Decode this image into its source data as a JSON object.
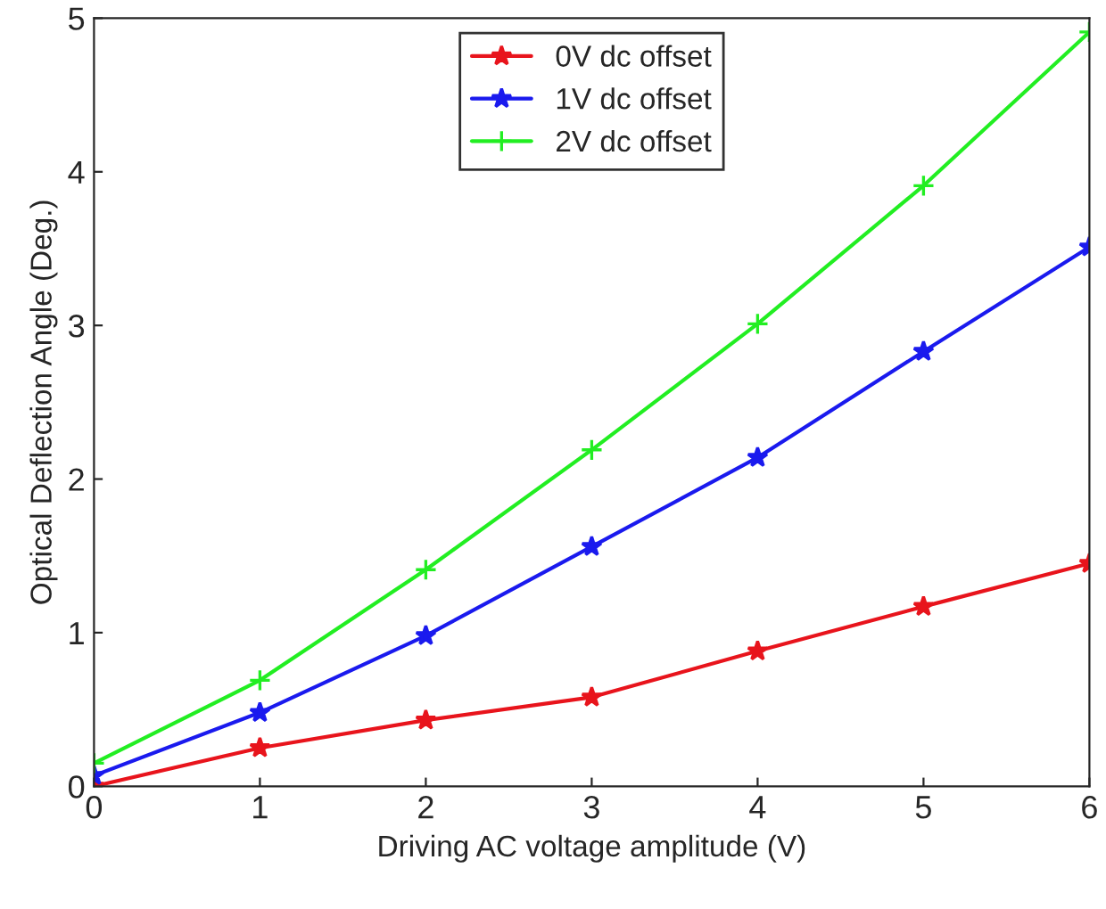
{
  "chart_data": {
    "type": "line",
    "xlabel": "Driving AC voltage amplitude (V)",
    "ylabel": "Optical Deflection Angle (Deg.)",
    "x": [
      0,
      1,
      2,
      3,
      4,
      5,
      6
    ],
    "series": [
      {
        "name": "0V dc offset",
        "color": "#e8141c",
        "marker": "star",
        "values": [
          0,
          0.25,
          0.43,
          0.58,
          0.88,
          1.17,
          1.45
        ]
      },
      {
        "name": "1V dc offset",
        "color": "#1a1aee",
        "marker": "star",
        "values": [
          0.07,
          0.48,
          0.98,
          1.56,
          2.14,
          2.83,
          3.51
        ]
      },
      {
        "name": "2V dc offset",
        "color": "#22ee22",
        "marker": "cross",
        "values": [
          0.15,
          0.69,
          1.41,
          2.19,
          3.01,
          3.91,
          4.91
        ]
      }
    ],
    "xlim": [
      0,
      6
    ],
    "ylim": [
      0,
      5
    ],
    "xticks": [
      0,
      1,
      2,
      3,
      4,
      5,
      6
    ],
    "yticks": [
      0,
      1,
      2,
      3,
      4,
      5
    ],
    "grid": false,
    "legend": "top",
    "line_style": "solid"
  }
}
